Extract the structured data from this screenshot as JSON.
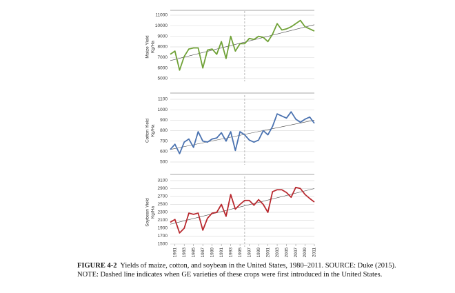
{
  "chart_data": [
    {
      "type": "line",
      "ylabel": [
        "Maize Yield",
        "Kg/Ha"
      ],
      "x": [
        1980,
        1981,
        1982,
        1983,
        1984,
        1985,
        1986,
        1987,
        1988,
        1989,
        1990,
        1991,
        1992,
        1993,
        1994,
        1995,
        1996,
        1997,
        1998,
        1999,
        2000,
        2001,
        2002,
        2003,
        2004,
        2005,
        2006,
        2007,
        2008,
        2009,
        2010,
        2011
      ],
      "series": [
        {
          "color": "#6fa136",
          "values": [
            7300,
            7600,
            5800,
            7100,
            7800,
            7900,
            7900,
            6000,
            7700,
            7800,
            7300,
            8500,
            6900,
            9000,
            7600,
            8300,
            8300,
            8800,
            8700,
            9000,
            8900,
            8500,
            9200,
            10200,
            9600,
            9700,
            9900,
            10200,
            10500,
            9900,
            9700,
            9500
          ]
        }
      ],
      "trend": [
        6700,
        10100
      ],
      "xlim": [
        1980,
        2011
      ],
      "ylim": [
        5000,
        11000
      ],
      "yticks": [
        5000,
        6000,
        7000,
        8000,
        9000,
        10000,
        11000
      ],
      "dashed_x": 1996
    },
    {
      "type": "line",
      "ylabel": [
        "Cotton Yield",
        "Kg/Ha"
      ],
      "x": [
        1980,
        1981,
        1982,
        1983,
        1984,
        1985,
        1986,
        1987,
        1988,
        1989,
        1990,
        1991,
        1992,
        1993,
        1994,
        1995,
        1996,
        1997,
        1998,
        1999,
        2000,
        2001,
        2002,
        2003,
        2004,
        2005,
        2006,
        2007,
        2008,
        2009,
        2010,
        2011
      ],
      "series": [
        {
          "color": "#4a72b0",
          "values": [
            620,
            670,
            580,
            690,
            720,
            640,
            790,
            700,
            690,
            720,
            730,
            780,
            700,
            790,
            610,
            790,
            760,
            710,
            690,
            710,
            800,
            760,
            840,
            960,
            940,
            920,
            980,
            910,
            880,
            910,
            930,
            870
          ]
        }
      ],
      "trend": [
        620,
        900
      ],
      "xlim": [
        1980,
        2011
      ],
      "ylim": [
        500,
        1100
      ],
      "yticks": [
        500,
        600,
        700,
        800,
        900,
        1000,
        1100
      ],
      "dashed_x": 1996
    },
    {
      "type": "line",
      "ylabel": [
        "Soybean Yield",
        "Kg/Ha"
      ],
      "x": [
        1980,
        1981,
        1982,
        1983,
        1984,
        1985,
        1986,
        1987,
        1988,
        1989,
        1990,
        1991,
        1992,
        1993,
        1994,
        1995,
        1996,
        1997,
        1998,
        1999,
        2000,
        2001,
        2002,
        2003,
        2004,
        2005,
        2006,
        2007,
        2008,
        2009,
        2010,
        2011
      ],
      "series": [
        {
          "color": "#b8282e",
          "values": [
            2050,
            2120,
            1780,
            1900,
            2280,
            2250,
            2280,
            1850,
            2150,
            2280,
            2300,
            2500,
            2200,
            2750,
            2380,
            2500,
            2600,
            2600,
            2480,
            2620,
            2500,
            2300,
            2820,
            2870,
            2870,
            2800,
            2680,
            2930,
            2900,
            2750,
            2650,
            2560
          ]
        }
      ],
      "trend": [
        2000,
        2900
      ],
      "xlim": [
        1980,
        2011
      ],
      "ylim": [
        1500,
        3100
      ],
      "yticks": [
        1500,
        1700,
        1900,
        2100,
        2300,
        2500,
        2700,
        2900,
        3100
      ],
      "dashed_x": 1996,
      "xticks": [
        1981,
        1983,
        1985,
        1987,
        1989,
        1991,
        1993,
        1995,
        1997,
        1999,
        2001,
        2003,
        2005,
        2007,
        2009,
        2011
      ]
    }
  ],
  "caption": {
    "label": "FIGURE 4-2",
    "text": "Yields of maize, cotton, and soybean in the United States, 1980–2011. SOURCE: Duke (2015).",
    "note": "NOTE: Dashed line indicates when GE varieties of these crops were first introduced in the United States."
  }
}
